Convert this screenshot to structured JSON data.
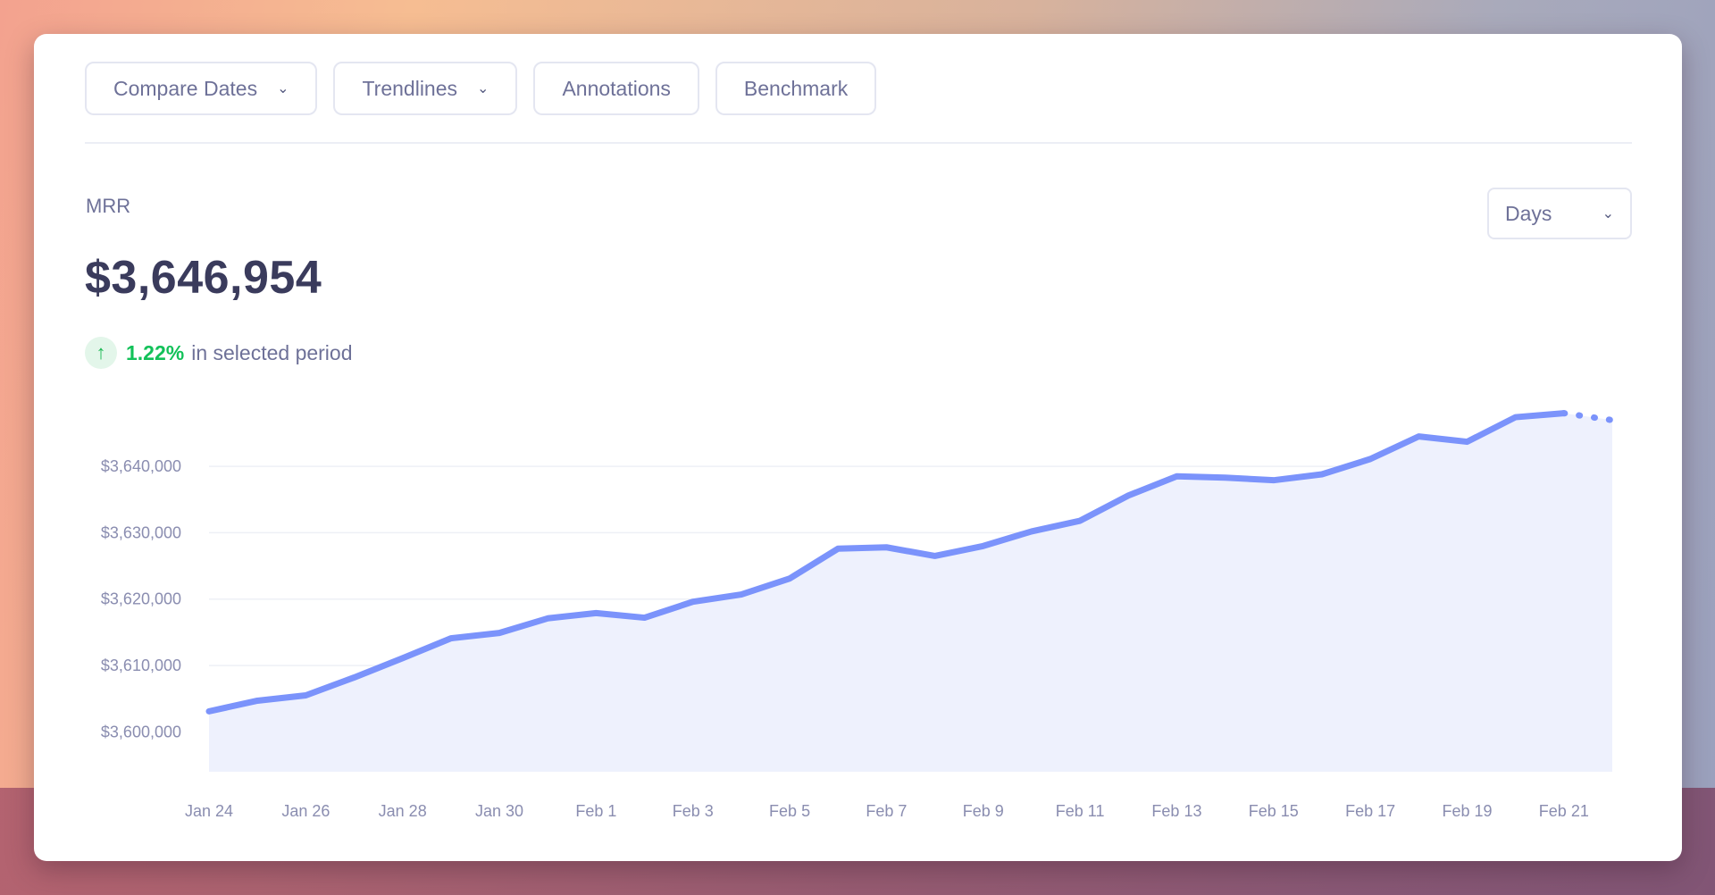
{
  "toolbar": {
    "compare_dates": "Compare Dates",
    "trendlines": "Trendlines",
    "annotations": "Annotations",
    "benchmark": "Benchmark"
  },
  "metric": {
    "label": "MRR",
    "value": "$3,646,954",
    "change_pct": "1.22%",
    "change_text": "in selected period"
  },
  "period_select": {
    "value": "Days"
  },
  "colors": {
    "line": "#7b93fb",
    "area": "#eef1fd",
    "up": "#12c159"
  },
  "chart_data": {
    "type": "area",
    "x": [
      "Jan 24",
      "Jan 25",
      "Jan 26",
      "Jan 27",
      "Jan 28",
      "Jan 29",
      "Jan 30",
      "Jan 31",
      "Feb 1",
      "Feb 2",
      "Feb 3",
      "Feb 4",
      "Feb 5",
      "Feb 6",
      "Feb 7",
      "Feb 8",
      "Feb 9",
      "Feb 10",
      "Feb 11",
      "Feb 12",
      "Feb 13",
      "Feb 14",
      "Feb 15",
      "Feb 16",
      "Feb 17",
      "Feb 18",
      "Feb 19",
      "Feb 20",
      "Feb 21",
      "Feb 22"
    ],
    "values": [
      3603100,
      3604700,
      3605500,
      3608200,
      3611100,
      3614100,
      3614900,
      3617100,
      3617900,
      3617200,
      3619600,
      3620700,
      3623100,
      3627600,
      3627800,
      3626500,
      3628000,
      3630200,
      3631800,
      3635600,
      3638500,
      3638300,
      3637900,
      3638800,
      3641100,
      3644500,
      3643700,
      3647400,
      3648000,
      3646954
    ],
    "projected_from_index": 28,
    "xticks": [
      "Jan 24",
      "Jan 26",
      "Jan 28",
      "Jan 30",
      "Feb 1",
      "Feb 3",
      "Feb 5",
      "Feb 7",
      "Feb 9",
      "Feb 11",
      "Feb 13",
      "Feb 15",
      "Feb 17",
      "Feb 19",
      "Feb 21"
    ],
    "yticks": [
      3600000,
      3610000,
      3620000,
      3630000,
      3640000
    ],
    "ytick_labels": [
      "$3,600,000",
      "$3,610,000",
      "$3,620,000",
      "$3,630,000",
      "$3,640,000"
    ],
    "ylim": [
      3594000,
      3654000
    ],
    "grid": true
  }
}
